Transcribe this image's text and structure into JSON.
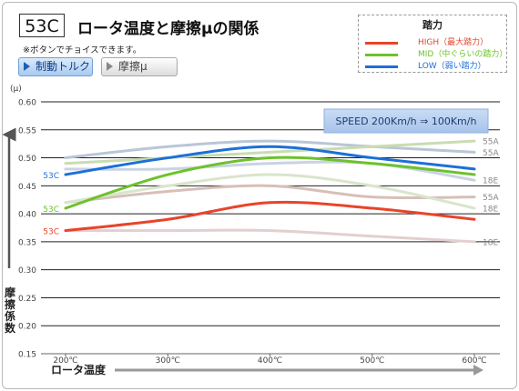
{
  "header": {
    "badge": "53C",
    "title": "ロータ温度と摩擦μの関係",
    "note": "※ボタンでチョイスできます。"
  },
  "buttons": [
    {
      "label": "制動トルク",
      "selected": true
    },
    {
      "label": "摩擦μ",
      "selected": false
    }
  ],
  "legend": {
    "title": "踏力",
    "items": [
      {
        "label": "HIGH（最大踏力）",
        "color": "#e8442a"
      },
      {
        "label": "MID（中ぐらいの踏力）",
        "color": "#6cc22c"
      },
      {
        "label": "LOW（弱い踏力）",
        "color": "#1c6fd9"
      }
    ]
  },
  "chart_data": {
    "type": "line",
    "y_unit": "(μ)",
    "ylabel": "摩擦係数",
    "xlabel": "ロータ温度",
    "x": [
      "200℃",
      "300℃",
      "400℃",
      "500℃",
      "600℃"
    ],
    "ylim": [
      0.15,
      0.6
    ],
    "yticks": [
      "0.60",
      "0.55",
      "0.50",
      "0.45",
      "0.40",
      "0.35",
      "0.30",
      "0.25",
      "0.20",
      "0.15"
    ],
    "yticks_values": [
      0.6,
      0.55,
      0.5,
      0.45,
      0.4,
      0.35,
      0.3,
      0.25,
      0.2,
      0.15
    ],
    "grid": true,
    "annotation": "SPEED 200Km/h ⇒ 100Km/h",
    "series": [
      {
        "label": "55A",
        "color": "#b9c6d6",
        "values": [
          0.5,
          0.52,
          0.53,
          0.52,
          0.51
        ],
        "label_side": "right"
      },
      {
        "label": "55A",
        "color": "#c9dcb2",
        "values": [
          0.49,
          0.5,
          0.51,
          0.52,
          0.53
        ],
        "label_side": "right"
      },
      {
        "label": "18E",
        "color": "#c9d3e3",
        "values": [
          0.48,
          0.48,
          0.49,
          0.49,
          0.46
        ],
        "label_side": "right"
      },
      {
        "label": "55A",
        "color": "#d7bfb8",
        "values": [
          0.42,
          0.44,
          0.45,
          0.43,
          0.43
        ],
        "label_side": "right"
      },
      {
        "label": "18E",
        "color": "#d9e5cc",
        "values": [
          0.42,
          0.45,
          0.47,
          0.45,
          0.41
        ],
        "label_side": "right"
      },
      {
        "label": "18E",
        "color": "#e3cfcf",
        "values": [
          0.37,
          0.37,
          0.37,
          0.36,
          0.35
        ],
        "label_side": "right"
      },
      {
        "label": "53C",
        "color": "#1c6fd9",
        "values": [
          0.47,
          0.5,
          0.52,
          0.5,
          0.48
        ],
        "label_side": "left"
      },
      {
        "label": "53C",
        "color": "#6cc22c",
        "values": [
          0.41,
          0.47,
          0.5,
          0.49,
          0.47
        ],
        "label_side": "left"
      },
      {
        "label": "53C",
        "color": "#e8442a",
        "values": [
          0.37,
          0.39,
          0.42,
          0.41,
          0.39
        ],
        "label_side": "left"
      }
    ]
  }
}
